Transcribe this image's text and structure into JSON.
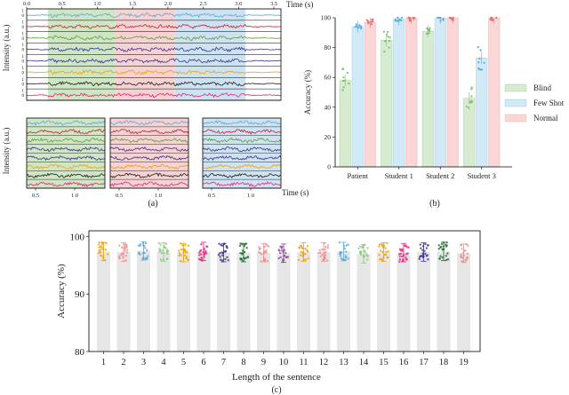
{
  "chart_data": [
    {
      "id": "a",
      "type": "line",
      "caption": "(a)",
      "ylabel": "Intensity (a.u.)",
      "top": {
        "xlabel": "Time (s)",
        "xticks": [
          "0.0",
          "0.5",
          "1.0",
          "1.5",
          "2.0",
          "2.5",
          "3.0",
          "3.5"
        ],
        "xlim": [
          0,
          3.6
        ],
        "yticks": [
          "1",
          "0"
        ],
        "channels": 8,
        "shaded_regions": [
          {
            "from": 0.3,
            "to": 1.25,
            "color": "#cfe6c4"
          },
          {
            "from": 1.25,
            "to": 2.1,
            "color": "#f6d2d2"
          },
          {
            "from": 2.1,
            "to": 3.1,
            "color": "#cde3f2"
          }
        ]
      },
      "bottom": {
        "xlabel": "Time (s)",
        "panels": [
          {
            "color": "#cfe6c4",
            "xticks": [
              "0.5",
              "1.0"
            ]
          },
          {
            "color": "#f6d2d2",
            "xticks": [
              "0.5",
              "1.0"
            ]
          },
          {
            "color": "#cde3f2",
            "xticks": [
              "0.5",
              "1.0"
            ]
          }
        ]
      },
      "line_colors": [
        "#5aa9d8",
        "#c21f2f",
        "#5c9e38",
        "#3d2f8e",
        "#3d2f8e",
        "#f0a000",
        "#1b1b1b",
        "#e2227e"
      ]
    },
    {
      "id": "b",
      "type": "bar",
      "caption": "(b)",
      "ylabel": "Accuracy (%)",
      "ylim": [
        0,
        100
      ],
      "yticks": [
        "0",
        "20",
        "40",
        "60",
        "80",
        "100"
      ],
      "categories": [
        "Patient",
        "Student 1",
        "Student 2",
        "Student 3"
      ],
      "series": [
        {
          "name": "Blind",
          "color": "#d6ebcf",
          "edge": "#9ccb8d",
          "dot": "#7fbf6a",
          "values": [
            58,
            85,
            91,
            46
          ]
        },
        {
          "name": "Few Shot",
          "color": "#d2e9f6",
          "edge": "#8fc4e5",
          "dot": "#5aa9d8",
          "values": [
            94,
            99,
            100,
            73
          ]
        },
        {
          "name": "Normal",
          "color": "#fbd6d6",
          "edge": "#f0a2a2",
          "dot": "#e07272",
          "values": [
            97,
            100,
            100,
            100
          ]
        }
      ]
    },
    {
      "id": "c",
      "type": "bar",
      "caption": "(c)",
      "xlabel": "Length of the sentence",
      "ylabel": "Accuracy (%)",
      "ylim": [
        80,
        101
      ],
      "yticks": [
        "80",
        "90",
        "100"
      ],
      "categories": [
        "1",
        "2",
        "3",
        "4",
        "5",
        "6",
        "7",
        "8",
        "9",
        "10",
        "11",
        "12",
        "13",
        "14",
        "15",
        "16",
        "17",
        "18",
        "19"
      ],
      "values": [
        97.4,
        97.3,
        97.5,
        97.3,
        97.2,
        97.4,
        97.2,
        97.2,
        97.2,
        97.1,
        97.3,
        97.3,
        97.4,
        97.0,
        97.3,
        97.2,
        97.3,
        97.4,
        97.1
      ],
      "point_colors": [
        "#f0a000",
        "#f28b8b",
        "#5aa9d8",
        "#8dc97a",
        "#f0a000",
        "#e2227e",
        "#3d2f8e",
        "#1e6b2a",
        "#f28b8b",
        "#8a4a9a",
        "#f0a000",
        "#f28b8b",
        "#5aa9d8",
        "#8dc97a",
        "#f0a000",
        "#e2227e",
        "#3d2f8e",
        "#1e6b2a",
        "#f28b8b"
      ]
    }
  ]
}
